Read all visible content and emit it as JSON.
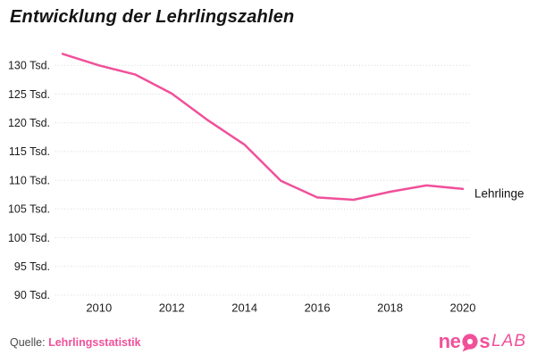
{
  "chart_data": {
    "type": "line",
    "title": "Entwicklung der Lehrlingszahlen",
    "x": [
      2009,
      2010,
      2011,
      2012,
      2013,
      2014,
      2015,
      2016,
      2017,
      2018,
      2019,
      2020
    ],
    "series": [
      {
        "name": "Lehrlinge",
        "values": [
          132.0,
          130.0,
          128.4,
          125.1,
          120.4,
          116.2,
          109.9,
          107.0,
          106.6,
          108.0,
          109.1,
          108.5
        ]
      }
    ],
    "end_label": "Lehrlinge",
    "x_ticks": [
      2010,
      2012,
      2014,
      2016,
      2018,
      2020
    ],
    "y_ticks": [
      130,
      125,
      120,
      115,
      110,
      105,
      100,
      95,
      90
    ],
    "y_tick_suffix": " Tsd.",
    "xlabel": "",
    "ylabel": "",
    "xlim": [
      2009,
      2020
    ],
    "ylim": [
      88.5,
      133
    ],
    "grid": "horizontal-dotted",
    "legend_position": "end-of-line"
  },
  "footer": {
    "source_label": "Quelle:",
    "source_link": "Lehrlingsstatistik",
    "logo": {
      "part1": "ne",
      "part2": "s",
      "part3": "LAB"
    }
  },
  "colors": {
    "accent_pink": "#f0509a",
    "grid": "#d6d6d6",
    "axis_text": "#1c1c1c",
    "title_text": "#141414",
    "muted_text": "#4a4a4a"
  }
}
